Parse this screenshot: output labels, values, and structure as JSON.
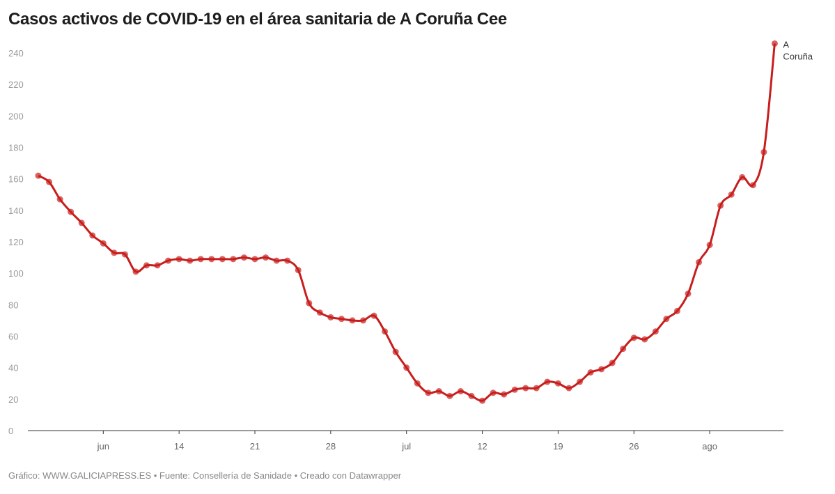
{
  "chart_data": {
    "type": "line",
    "title": "Casos activos de COVID-19 en el área sanitaria de A Coruña Cee",
    "xlabel": "",
    "ylabel": "",
    "ylim": [
      0,
      240
    ],
    "yticks": [
      0,
      20,
      40,
      60,
      80,
      100,
      120,
      140,
      160,
      180,
      200,
      220,
      240
    ],
    "x_start": "2020-06-01",
    "x_end": "2020-08-08",
    "xticks": [
      {
        "date": "2020-06-07",
        "label": "jun"
      },
      {
        "date": "2020-06-14",
        "label": "14"
      },
      {
        "date": "2020-06-21",
        "label": "21"
      },
      {
        "date": "2020-06-28",
        "label": "28"
      },
      {
        "date": "2020-07-05",
        "label": "jul"
      },
      {
        "date": "2020-07-12",
        "label": "12"
      },
      {
        "date": "2020-07-19",
        "label": "19"
      },
      {
        "date": "2020-07-26",
        "label": "26"
      },
      {
        "date": "2020-08-02",
        "label": "ago"
      }
    ],
    "grid": false,
    "series": [
      {
        "name": "A Coruña",
        "color": "#c71e1d",
        "values": [
          162,
          158,
          147,
          139,
          132,
          124,
          119,
          113,
          112,
          101,
          105,
          105,
          108,
          109,
          108,
          109,
          109,
          109,
          109,
          110,
          109,
          110,
          108,
          108,
          102,
          81,
          75,
          72,
          71,
          70,
          70,
          73,
          63,
          50,
          40,
          30,
          24,
          25,
          22,
          25,
          22,
          19,
          24,
          23,
          26,
          27,
          27,
          31,
          30,
          27,
          31,
          37,
          39,
          43,
          52,
          59,
          58,
          63,
          71,
          76,
          87,
          107,
          118,
          143,
          150,
          161,
          156,
          177,
          246
        ]
      }
    ],
    "series_label_lines": [
      "A",
      "Coruña"
    ]
  },
  "footer": "Gráfico: WWW.GALICIAPRESS.ES • Fuente: Consellería de Sanidade • Creado con Datawrapper"
}
